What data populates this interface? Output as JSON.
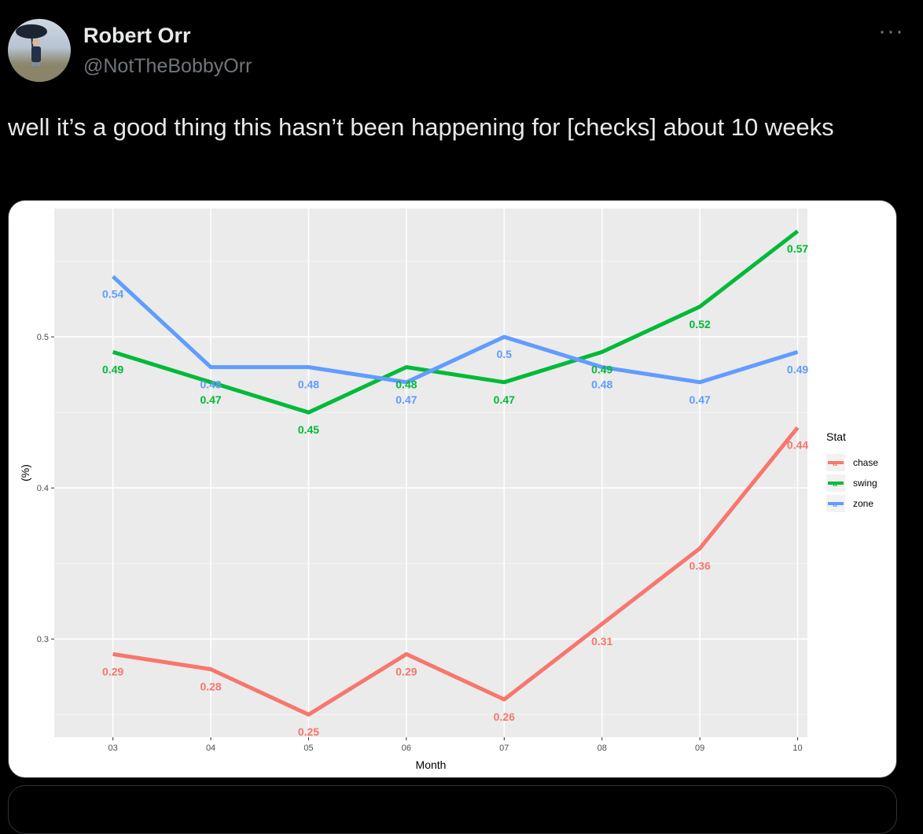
{
  "author": {
    "name": "Robert Orr",
    "handle": "@NotTheBobbyOrr"
  },
  "more_label": "···",
  "tweet_text": "well it’s a good thing this hasn’t been happening for [checks] about 10 weeks",
  "chart_data": {
    "type": "line",
    "categories": [
      "03",
      "04",
      "05",
      "06",
      "07",
      "08",
      "09",
      "10"
    ],
    "xlabel": "Month",
    "ylabel": "(%)",
    "ylim": [
      0.235,
      0.585
    ],
    "yticks": [
      0.3,
      0.4,
      0.5
    ],
    "ytick_labels": [
      "0.3",
      "0.4",
      "0.5"
    ],
    "grid": true,
    "legend": {
      "title": "Stat",
      "position": "right"
    },
    "series": [
      {
        "name": "chase",
        "color": "#F8766D",
        "values": [
          0.29,
          0.28,
          0.25,
          0.29,
          0.26,
          0.31,
          0.36,
          0.44
        ]
      },
      {
        "name": "swing",
        "color": "#00BA38",
        "values": [
          0.49,
          0.47,
          0.45,
          0.48,
          0.47,
          0.49,
          0.52,
          0.57
        ]
      },
      {
        "name": "zone",
        "color": "#619CFF",
        "values": [
          0.54,
          0.48,
          0.48,
          0.47,
          0.5,
          0.48,
          0.47,
          0.49
        ]
      }
    ]
  }
}
